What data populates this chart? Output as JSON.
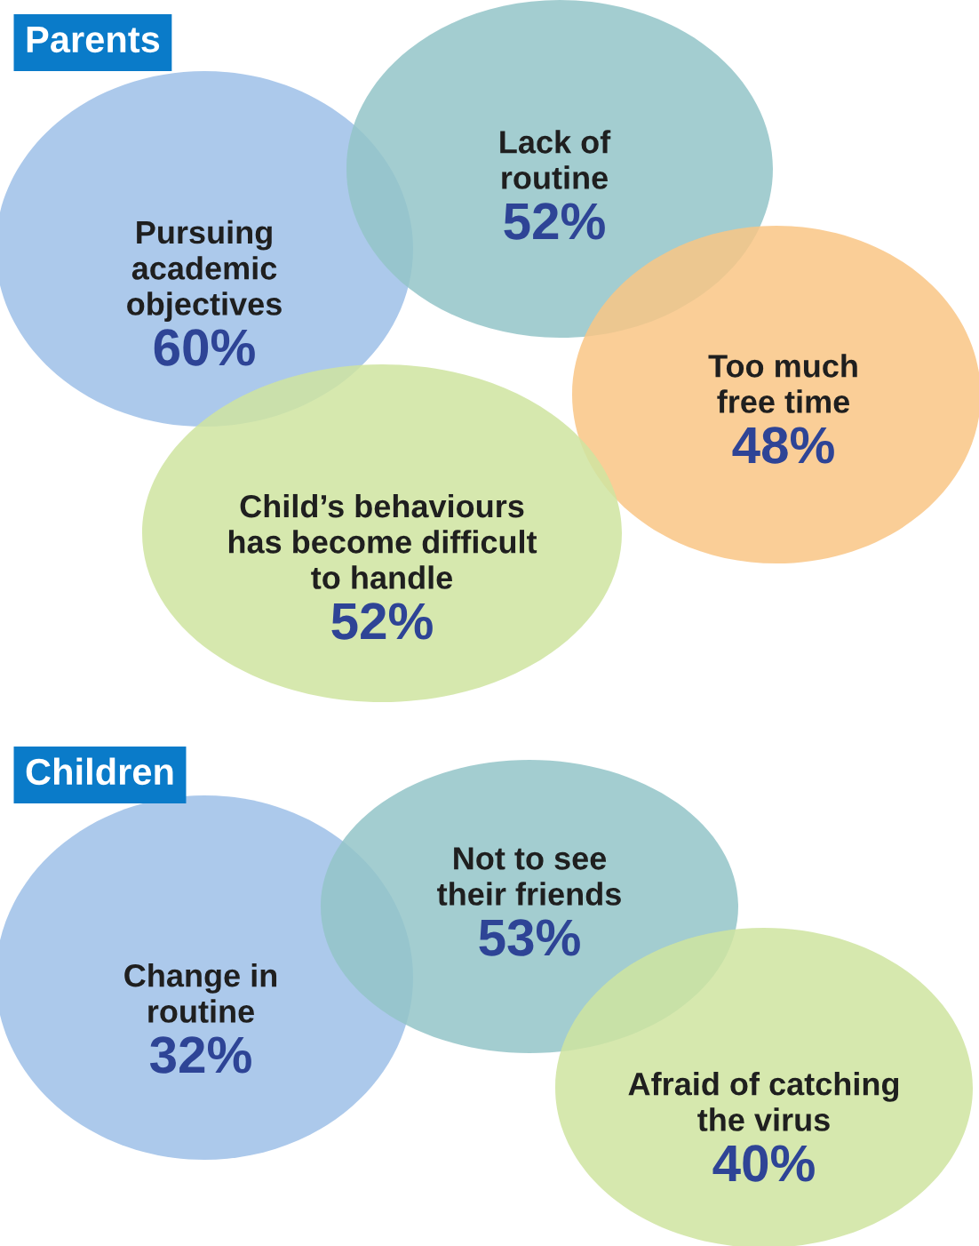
{
  "chart_data": [
    {
      "type": "other",
      "title": "Parents",
      "categories": [
        "Pursuing\nacademic\nobjectives",
        "Lack of\nroutine",
        "Too much\nfree time",
        "Child’s behaviours\nhas become difficult\nto handle"
      ],
      "values": [
        60,
        52,
        48,
        52
      ],
      "value_labels": [
        "60%",
        "52%",
        "48%",
        "52%"
      ],
      "colors": [
        "#9dbfe8",
        "#93c4c8",
        "#f9c585",
        "#cfe4a0"
      ]
    },
    {
      "type": "other",
      "title": "Children",
      "categories": [
        "Change in\nroutine",
        "Not to see\ntheir friends",
        "Afraid of catching\nthe virus"
      ],
      "values": [
        32,
        53,
        40
      ],
      "value_labels": [
        "32%",
        "53%",
        "40%"
      ],
      "colors": [
        "#9dbfe8",
        "#93c4c8",
        "#cfe4a0"
      ]
    }
  ]
}
